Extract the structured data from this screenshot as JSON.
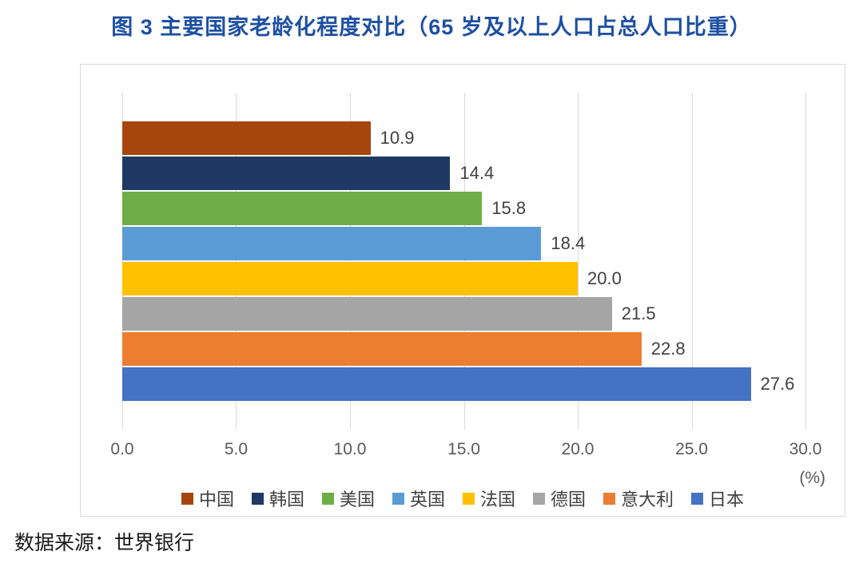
{
  "title": "图 3 主要国家老龄化程度对比（65 岁及以上人口占总人口比重）",
  "source": "数据来源：世界银行",
  "axis_unit": "(%)",
  "chart_data": {
    "type": "bar",
    "orientation": "horizontal",
    "title": "图 3 主要国家老龄化程度对比（65 岁及以上人口占总人口比重）",
    "categories": [
      "中国",
      "韩国",
      "美国",
      "英国",
      "法国",
      "德国",
      "意大利",
      "日本"
    ],
    "values": [
      10.9,
      14.4,
      15.8,
      18.4,
      20.0,
      21.5,
      22.8,
      27.6
    ],
    "value_labels": [
      "10.9",
      "14.4",
      "15.8",
      "18.4",
      "20.0",
      "21.5",
      "22.8",
      "27.6"
    ],
    "colors": [
      "#A6460D",
      "#1F3864",
      "#70AD47",
      "#5B9BD5",
      "#FFC000",
      "#A5A5A5",
      "#ED7D31",
      "#4472C4"
    ],
    "xlabel": "(%)",
    "ylabel": "",
    "xlim": [
      0,
      30
    ],
    "xticks": [
      "0.0",
      "5.0",
      "10.0",
      "15.0",
      "20.0",
      "25.0",
      "30.0"
    ],
    "grid": true,
    "legend_position": "bottom"
  }
}
